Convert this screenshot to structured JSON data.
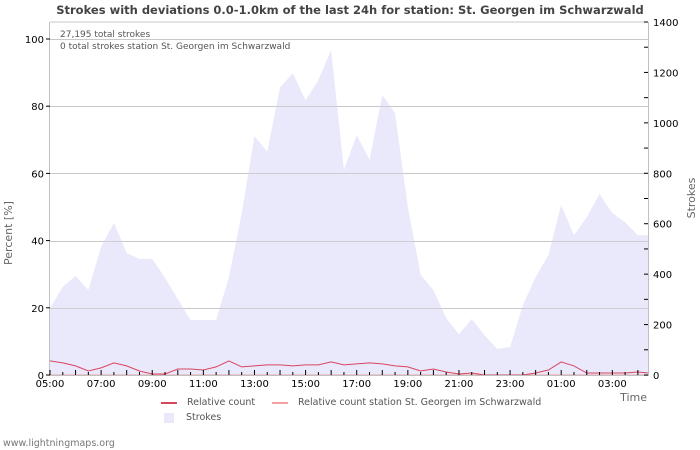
{
  "header": {
    "title": "Strokes with deviations 0.0-1.0km of the last 24h for station: St. Georgen im Schwarzwald"
  },
  "info": {
    "total_strokes": "27,195 total strokes",
    "station_strokes": "0 total strokes station St. Georgen im Schwarzwald"
  },
  "axes": {
    "left_title": "Percent   [%]",
    "right_title": "Strokes",
    "x_title": "Time",
    "left_ticks": [
      "0",
      "20",
      "40",
      "60",
      "80",
      "100"
    ],
    "right_ticks": [
      "0",
      "200",
      "400",
      "600",
      "800",
      "1000",
      "1200",
      "1400"
    ],
    "x_ticks": [
      "05:00",
      "07:00",
      "09:00",
      "11:00",
      "13:00",
      "15:00",
      "17:00",
      "19:00",
      "21:00",
      "23:00",
      "01:00",
      "03:00"
    ]
  },
  "legend": {
    "relative_count": "Relative count",
    "relative_count_station": "Relative count station St. Georgen im Schwarzwald",
    "strokes": "Strokes"
  },
  "colors": {
    "relative_count": "#d9455f",
    "relative_count_station": "#f4a0a0",
    "strokes_fill": "#e9e9fb",
    "grid": "#c8c8c8"
  },
  "footer": {
    "site": "www.lightningmaps.org"
  },
  "chart_data": {
    "type": "area",
    "title": "Strokes with deviations 0.0-1.0km of the last 24h for station: St. Georgen im Schwarzwald",
    "xlabel": "Time",
    "ylabel": "Percent [%]",
    "y2label": "Strokes",
    "ylim": [
      0,
      100
    ],
    "y2lim": [
      0,
      1400
    ],
    "grid": true,
    "legend_position": "bottom",
    "x": [
      "05:00",
      "05:30",
      "06:00",
      "06:30",
      "07:00",
      "07:30",
      "08:00",
      "08:30",
      "09:00",
      "09:30",
      "10:00",
      "10:30",
      "11:00",
      "11:30",
      "12:00",
      "12:30",
      "13:00",
      "13:30",
      "14:00",
      "14:30",
      "15:00",
      "15:30",
      "16:00",
      "16:30",
      "17:00",
      "17:30",
      "18:00",
      "18:30",
      "19:00",
      "19:30",
      "20:00",
      "20:30",
      "21:00",
      "21:30",
      "22:00",
      "22:30",
      "23:00",
      "23:30",
      "00:00",
      "00:30",
      "01:00",
      "01:30",
      "02:00",
      "02:30",
      "03:00",
      "03:30",
      "04:00",
      "04:30"
    ],
    "series": [
      {
        "name": "Strokes",
        "axis": "right",
        "type": "area",
        "values": [
          265,
          350,
          393,
          337,
          508,
          603,
          484,
          460,
          460,
          385,
          301,
          218,
          218,
          218,
          388,
          640,
          948,
          885,
          1141,
          1197,
          1090,
          1170,
          1289,
          813,
          952,
          853,
          1110,
          1038,
          666,
          397,
          337,
          226,
          162,
          222,
          158,
          103,
          111,
          277,
          388,
          476,
          674,
          555,
          626,
          718,
          642,
          606,
          555,
          555
        ]
      },
      {
        "name": "Relative count",
        "axis": "left",
        "type": "line",
        "values": [
          4.2,
          3.6,
          2.7,
          1.2,
          2.1,
          3.6,
          2.7,
          1.2,
          0.3,
          0.3,
          1.8,
          1.8,
          1.5,
          2.4,
          4.2,
          2.4,
          2.7,
          3.0,
          3.0,
          2.7,
          3.0,
          3.0,
          3.9,
          3.0,
          3.3,
          3.6,
          3.3,
          2.7,
          2.4,
          1.2,
          1.8,
          0.9,
          0.3,
          0.6,
          0,
          0,
          0,
          0,
          0.6,
          1.5,
          3.9,
          2.7,
          0.6,
          0.6,
          0.6,
          0.6,
          0.9,
          0.6
        ]
      },
      {
        "name": "Relative count station St. Georgen im Schwarzwald",
        "axis": "left",
        "type": "line",
        "values": [
          0,
          0,
          0,
          0,
          0,
          0,
          0,
          0,
          0,
          0,
          0,
          0,
          0,
          0,
          0,
          0,
          0,
          0,
          0,
          0,
          0,
          0,
          0,
          0,
          0,
          0,
          0,
          0,
          0,
          0,
          0,
          0,
          0,
          0,
          0,
          0,
          0,
          0,
          0,
          0,
          0,
          0,
          0,
          0,
          0,
          0,
          0,
          0
        ]
      }
    ]
  }
}
